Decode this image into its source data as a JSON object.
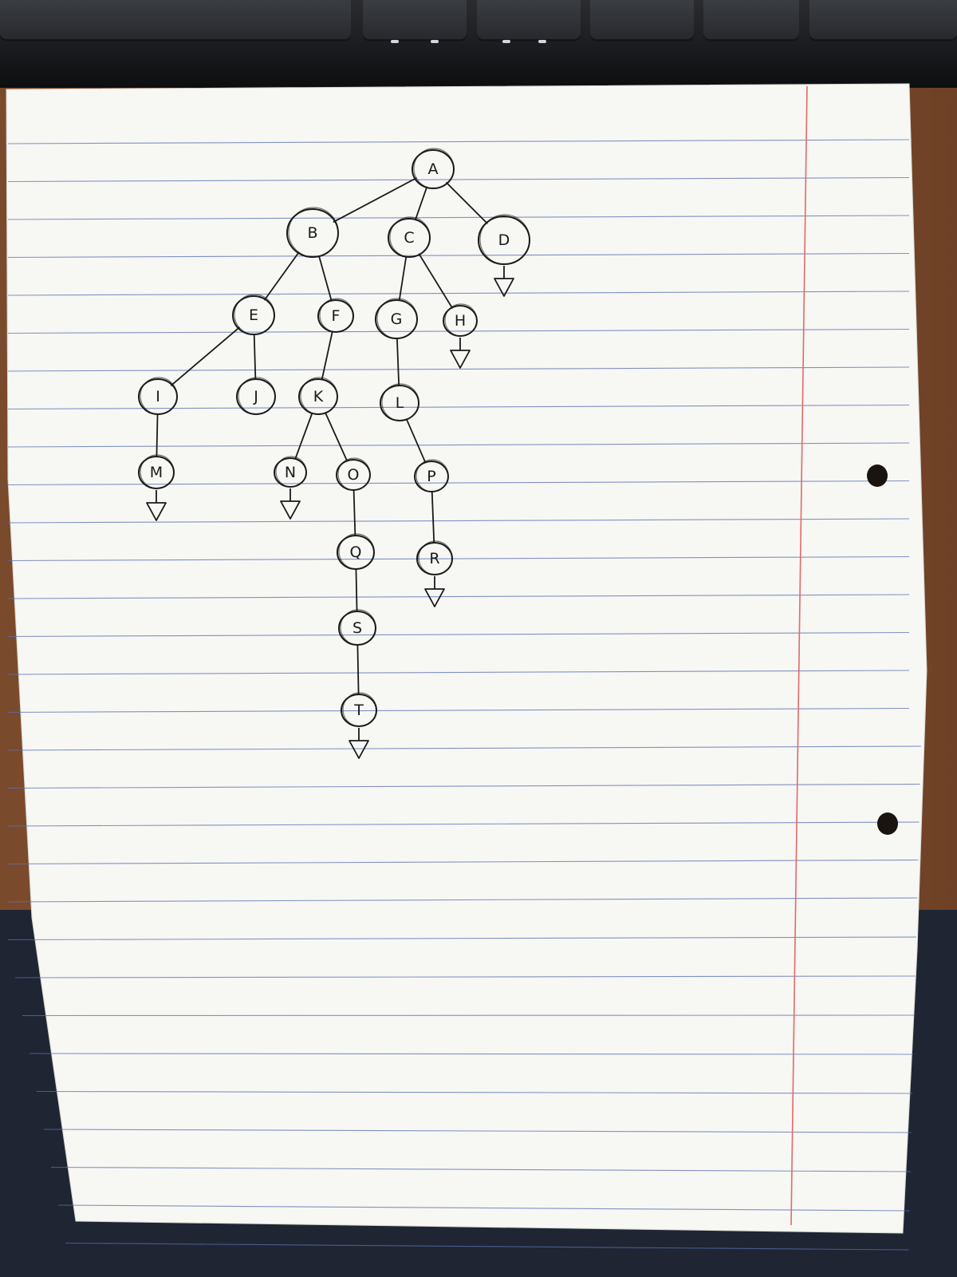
{
  "diagram": {
    "type": "tree",
    "nodes": [
      {
        "id": "A",
        "label": "A",
        "parent": null
      },
      {
        "id": "B",
        "label": "B",
        "parent": "A"
      },
      {
        "id": "C",
        "label": "C",
        "parent": "A"
      },
      {
        "id": "D",
        "label": "D",
        "parent": "A"
      },
      {
        "id": "E",
        "label": "E",
        "parent": "B"
      },
      {
        "id": "F",
        "label": "F",
        "parent": "B"
      },
      {
        "id": "G",
        "label": "G",
        "parent": "C"
      },
      {
        "id": "H",
        "label": "H",
        "parent": "C"
      },
      {
        "id": "I",
        "label": "I",
        "parent": "E"
      },
      {
        "id": "J",
        "label": "J",
        "parent": "E"
      },
      {
        "id": "K",
        "label": "K",
        "parent": "F"
      },
      {
        "id": "L",
        "label": "L",
        "parent": "G"
      },
      {
        "id": "M",
        "label": "M",
        "parent": "I"
      },
      {
        "id": "N",
        "label": "N",
        "parent": "K"
      },
      {
        "id": "O",
        "label": "O",
        "parent": "K"
      },
      {
        "id": "P",
        "label": "P",
        "parent": "L"
      },
      {
        "id": "Q",
        "label": "Q",
        "parent": "O"
      },
      {
        "id": "R",
        "label": "R",
        "parent": "P"
      },
      {
        "id": "S",
        "label": "S",
        "parent": "Q"
      },
      {
        "id": "T",
        "label": "T",
        "parent": "S"
      }
    ],
    "terminal_marker_nodes": [
      "D",
      "H",
      "M",
      "N",
      "R",
      "T"
    ],
    "ink_color": "#1a1a1a",
    "rule_color": "#5a6fb0",
    "margin_color": "#e06a6a"
  }
}
